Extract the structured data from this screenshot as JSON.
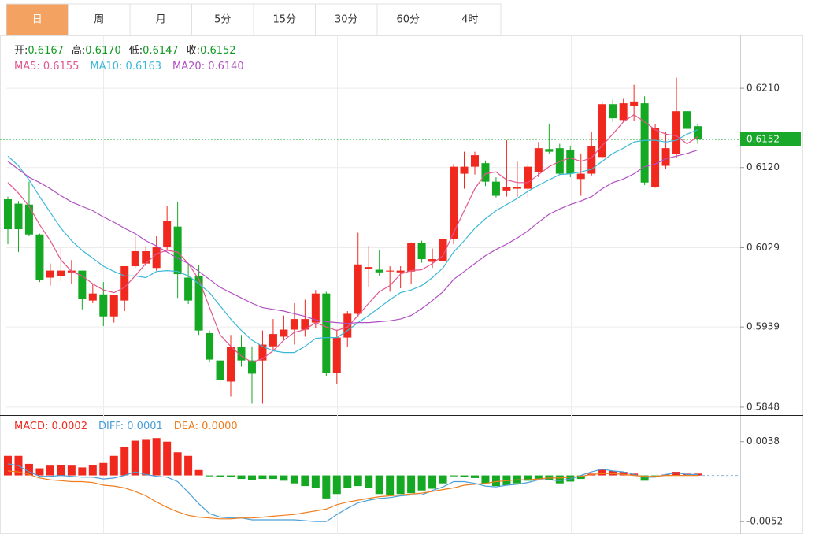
{
  "tabs": [
    "日",
    "周",
    "月",
    "5分",
    "15分",
    "30分",
    "60分",
    "4时"
  ],
  "active_tab": 0,
  "chart_data": [
    {
      "type": "candlestick",
      "info": [
        {
          "label": "开:",
          "value": "0.6167"
        },
        {
          "label": "高:",
          "value": "0.6170"
        },
        {
          "label": "低:",
          "value": "0.6147"
        },
        {
          "label": "收:",
          "value": "0.6152"
        }
      ],
      "up_color": "#f0281e",
      "down_color": "#14a823",
      "open": [
        0.6084,
        0.6079,
        0.6078,
        0.6044,
        0.5995,
        0.5997,
        0.6001,
        0.6003,
        0.5969,
        0.5976,
        0.5951,
        0.5969,
        0.6008,
        0.6011,
        0.6006,
        0.603,
        0.6053,
        0.5995,
        0.5997,
        0.5932,
        0.5901,
        0.5877,
        0.5916,
        0.5901,
        0.5901,
        0.5917,
        0.5928,
        0.5936,
        0.5936,
        0.5944,
        0.5977,
        0.5887,
        0.5927,
        0.5954,
        0.6005,
        0.6004,
        0.6002,
        0.6001,
        0.6002,
        0.6034,
        0.6013,
        0.6014,
        0.6039,
        0.6113,
        0.6121,
        0.6125,
        0.6104,
        0.6094,
        0.6096,
        0.6096,
        0.6115,
        0.6141,
        0.6142,
        0.614,
        0.6107,
        0.6113,
        0.6132,
        0.6192,
        0.6174,
        0.619,
        0.6193,
        0.6098,
        0.6122,
        0.6135,
        0.6184,
        0.6167
      ],
      "high": [
        0.6087,
        0.6082,
        0.6104,
        0.6045,
        0.6011,
        0.6029,
        0.6015,
        0.6003,
        0.5988,
        0.599,
        0.5975,
        0.6008,
        0.6042,
        0.6031,
        0.6042,
        0.6076,
        0.6081,
        0.6011,
        0.6009,
        0.5935,
        0.5908,
        0.593,
        0.593,
        0.5917,
        0.5935,
        0.5948,
        0.5952,
        0.5966,
        0.597,
        0.5981,
        0.5979,
        0.5936,
        0.5957,
        0.6046,
        0.6031,
        0.6026,
        0.6008,
        0.6008,
        0.6035,
        0.6037,
        0.6028,
        0.6044,
        0.6124,
        0.6138,
        0.6138,
        0.6128,
        0.6109,
        0.6151,
        0.6127,
        0.6124,
        0.6149,
        0.617,
        0.6147,
        0.6145,
        0.6136,
        0.616,
        0.6194,
        0.6197,
        0.6198,
        0.6214,
        0.6201,
        0.6169,
        0.616,
        0.6222,
        0.6198,
        0.617
      ],
      "low": [
        0.6033,
        0.6024,
        0.6042,
        0.599,
        0.5986,
        0.5991,
        0.5988,
        0.5959,
        0.5966,
        0.594,
        0.5944,
        0.5957,
        0.6006,
        0.6008,
        0.6003,
        0.6026,
        0.5972,
        0.5965,
        0.593,
        0.5899,
        0.5869,
        0.586,
        0.5894,
        0.5852,
        0.5852,
        0.5912,
        0.5924,
        0.5919,
        0.5928,
        0.5938,
        0.5883,
        0.5874,
        0.5916,
        0.5951,
        0.5984,
        0.5997,
        0.5979,
        0.5983,
        0.5988,
        0.6012,
        0.6006,
        0.5995,
        0.6033,
        0.6096,
        0.6112,
        0.6099,
        0.6086,
        0.6087,
        0.6087,
        0.6086,
        0.6109,
        0.6136,
        0.6112,
        0.6109,
        0.6088,
        0.6111,
        0.613,
        0.6172,
        0.6172,
        0.6173,
        0.61,
        0.6097,
        0.6118,
        0.6131,
        0.6163,
        0.6147
      ],
      "close": [
        0.605,
        0.605,
        0.6044,
        0.5992,
        0.6003,
        0.6003,
        0.6003,
        0.5971,
        0.5977,
        0.5951,
        0.5975,
        0.6008,
        0.6025,
        0.6025,
        0.603,
        0.6059,
        0.5999,
        0.5969,
        0.5935,
        0.5902,
        0.5879,
        0.5916,
        0.5901,
        0.5886,
        0.5919,
        0.5931,
        0.5936,
        0.5948,
        0.5948,
        0.5977,
        0.5887,
        0.5927,
        0.5954,
        0.601,
        0.6007,
        0.6001,
        0.6003,
        0.6003,
        0.6034,
        0.6016,
        0.6016,
        0.6039,
        0.6121,
        0.6121,
        0.6134,
        0.6104,
        0.6088,
        0.6098,
        0.6098,
        0.6121,
        0.6142,
        0.6138,
        0.6113,
        0.6113,
        0.6113,
        0.6144,
        0.6192,
        0.6176,
        0.6193,
        0.6195,
        0.6103,
        0.6165,
        0.6142,
        0.6184,
        0.6164,
        0.6152
      ],
      "series": [
        {
          "legend": "MA5: 0.6155",
          "color": "#e2578f",
          "values": [
            0.6103,
            0.6091,
            0.6076,
            0.6055,
            0.6037,
            0.6015,
            0.6002,
            0.5997,
            0.5988,
            0.5981,
            0.5978,
            0.5984,
            0.5997,
            0.6011,
            0.6022,
            0.6026,
            0.6024,
            0.6011,
            0.5993,
            0.5961,
            0.593,
            0.5917,
            0.5906,
            0.5899,
            0.5903,
            0.5912,
            0.5924,
            0.5933,
            0.5936,
            0.5944,
            0.5939,
            0.5935,
            0.5939,
            0.5952,
            0.5966,
            0.5979,
            0.5986,
            0.5999,
            0.6003,
            0.6004,
            0.6011,
            0.602,
            0.6046,
            0.6071,
            0.6096,
            0.6113,
            0.6115,
            0.6106,
            0.6103,
            0.6103,
            0.6112,
            0.6121,
            0.6127,
            0.6131,
            0.6127,
            0.6131,
            0.6145,
            0.6158,
            0.6172,
            0.618,
            0.6172,
            0.6163,
            0.6158,
            0.6156,
            0.6147,
            0.6155
          ]
        },
        {
          "legend": "MA10: 0.6163",
          "color": "#3bb8d8",
          "values": [
            0.6133,
            0.6122,
            0.6106,
            0.6087,
            0.6069,
            0.6051,
            0.6037,
            0.6026,
            0.6017,
            0.6008,
            0.6002,
            0.5997,
            0.5997,
            0.5995,
            0.6002,
            0.6003,
            0.6002,
            0.5997,
            0.5988,
            0.5978,
            0.5963,
            0.5948,
            0.5935,
            0.5924,
            0.5917,
            0.5912,
            0.591,
            0.591,
            0.5917,
            0.5926,
            0.5927,
            0.5927,
            0.5935,
            0.5944,
            0.5952,
            0.5961,
            0.597,
            0.5978,
            0.5981,
            0.5986,
            0.5995,
            0.6006,
            0.6024,
            0.6037,
            0.6051,
            0.6062,
            0.6071,
            0.6078,
            0.6085,
            0.6093,
            0.61,
            0.6106,
            0.6112,
            0.6113,
            0.6115,
            0.6118,
            0.6127,
            0.6136,
            0.6142,
            0.6149,
            0.6151,
            0.6151,
            0.6149,
            0.6151,
            0.6158,
            0.6163
          ]
        },
        {
          "legend": "MA20: 0.6140",
          "color": "#b04fc2",
          "values": [
            0.6127,
            0.6118,
            0.6109,
            0.6103,
            0.6096,
            0.6088,
            0.6081,
            0.6076,
            0.6071,
            0.6064,
            0.6058,
            0.6051,
            0.6045,
            0.6037,
            0.6031,
            0.6024,
            0.6017,
            0.6011,
            0.6002,
            0.5993,
            0.5984,
            0.5978,
            0.5972,
            0.5966,
            0.5961,
            0.5959,
            0.5957,
            0.5954,
            0.5951,
            0.5947,
            0.5945,
            0.5944,
            0.5943,
            0.5944,
            0.5944,
            0.5945,
            0.5946,
            0.5948,
            0.5952,
            0.596,
            0.5969,
            0.5979,
            0.5993,
            0.6002,
            0.6011,
            0.602,
            0.6027,
            0.6033,
            0.604,
            0.6048,
            0.6058,
            0.6067,
            0.6073,
            0.6078,
            0.6082,
            0.6087,
            0.6096,
            0.6103,
            0.6107,
            0.6113,
            0.6121,
            0.6124,
            0.613,
            0.6133,
            0.6136,
            0.614
          ]
        }
      ],
      "ylim": [
        0.5839,
        0.627
      ],
      "yticks": [
        0.5848,
        0.5939,
        0.6029,
        {
          "value": 0.612,
          "label": "0.6120"
        },
        {
          "value": 0.621,
          "label": "0.6210"
        }
      ],
      "grid": true,
      "last_price": 0.6152,
      "last_price_color": "#19a82a"
    },
    {
      "type": "macd",
      "histogram": {
        "legend": "MACD: 0.0002",
        "up_color": "#f0281e",
        "down_color": "#14a823",
        "values": [
          0.0022,
          0.0022,
          0.0013,
          0.0008,
          0.0011,
          0.0012,
          0.0011,
          0.0009,
          0.0012,
          0.0014,
          0.0022,
          0.0032,
          0.0039,
          0.004,
          0.0042,
          0.0038,
          0.0026,
          0.0022,
          0.0006,
          -0.0001,
          -0.0002,
          -0.0002,
          -0.0004,
          -0.0005,
          -0.0004,
          -0.0004,
          -0.0006,
          -0.0009,
          -0.0012,
          -0.0014,
          -0.0026,
          -0.0021,
          -0.0014,
          -0.0012,
          -0.0014,
          -0.0021,
          -0.0022,
          -0.0021,
          -0.002,
          -0.0017,
          -0.0015,
          -0.0009,
          -0.0001,
          -0.0002,
          -0.0003,
          -0.0009,
          -0.0012,
          -0.0011,
          -0.0009,
          -0.0006,
          -0.0004,
          -0.0005,
          -0.0009,
          -0.0007,
          -0.0004,
          0.0002,
          0.0007,
          0.0005,
          0.0004,
          0.0002,
          -0.0006,
          -0.0002,
          0.0001,
          0.0004,
          0.0002,
          0.0002
        ]
      },
      "series": [
        {
          "legend": "DIFF: 0.0001",
          "color": "#4a9fd8",
          "values": [
            0.0013,
            0.0011,
            0.0004,
            -0.0001,
            -0.0001,
            0,
            -0.0001,
            -0.0002,
            -0.0002,
            -0.0004,
            -0.0003,
            0,
            0.0004,
            0.0001,
            -0.0001,
            -0.0002,
            -0.0007,
            -0.0019,
            -0.0032,
            -0.0043,
            -0.0047,
            -0.0048,
            -0.0048,
            -0.005,
            -0.005,
            -0.005,
            -0.005,
            -0.005,
            -0.0051,
            -0.0052,
            -0.0052,
            -0.0044,
            -0.0037,
            -0.0031,
            -0.0028,
            -0.0026,
            -0.0025,
            -0.0023,
            -0.0022,
            -0.0022,
            -0.0017,
            -0.0013,
            -0.0007,
            -0.0007,
            -0.0009,
            -0.0012,
            -0.0013,
            -0.0011,
            -0.001,
            -0.0008,
            -0.0005,
            -0.0005,
            -0.0006,
            -0.0004,
            0,
            0.0004,
            0.0007,
            0.0005,
            0.0004,
            0.0001,
            -0.0002,
            -0.0002,
            0.0001,
            0.0003,
            0.0001,
            0.0001
          ]
        },
        {
          "legend": "DEA: 0.0000",
          "color": "#f07d1e",
          "values": [
            0.0005,
            0.0004,
            0.0001,
            -0.0003,
            -0.0005,
            -0.0006,
            -0.0007,
            -0.0007,
            -0.0008,
            -0.0011,
            -0.0012,
            -0.0014,
            -0.0018,
            -0.0023,
            -0.003,
            -0.0036,
            -0.0041,
            -0.0045,
            -0.0047,
            -0.0048,
            -0.0049,
            -0.0049,
            -0.0048,
            -0.0048,
            -0.0047,
            -0.0046,
            -0.0045,
            -0.0044,
            -0.0042,
            -0.004,
            -0.0038,
            -0.0033,
            -0.003,
            -0.0028,
            -0.0026,
            -0.0024,
            -0.0023,
            -0.0022,
            -0.0021,
            -0.002,
            -0.0018,
            -0.0016,
            -0.0014,
            -0.0011,
            -0.001,
            -0.0009,
            -0.0007,
            -0.0006,
            -0.0005,
            -0.0005,
            -0.0004,
            -0.0003,
            -0.0003,
            -0.0002,
            -0.0001,
            0.0001,
            0.0002,
            0.0002,
            0.0001,
            0,
            -0.0001,
            -0.0001,
            0,
            0,
            0,
            0
          ]
        }
      ],
      "ylim": [
        -0.0066,
        0.0067
      ],
      "yticks": [
        0.0038,
        -0.0052
      ]
    }
  ]
}
